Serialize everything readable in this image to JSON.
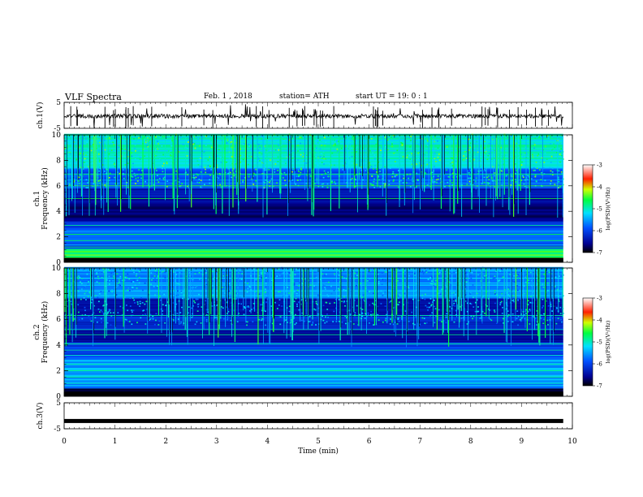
{
  "header": {
    "title": "VLF  Spectra",
    "date": "Feb. 1  , 2018",
    "station": "station= ATH",
    "start": "start  UT  =   19: 0   : 1"
  },
  "chart_data": [
    {
      "type": "line",
      "panel": "ch1-waveform",
      "ylabel": "ch.1(V)",
      "ylim": [
        -5,
        5
      ],
      "yticks": [
        "5",
        "-5"
      ],
      "xlim": [
        0,
        10
      ],
      "data_end_min": 9.82,
      "baseline": -0.3
    },
    {
      "type": "heatmap",
      "panel": "ch1-spectrogram",
      "ylabel": "Frequency (kHz)",
      "channel_label": "ch.1",
      "ylim": [
        0,
        10
      ],
      "yticks": [
        "0",
        "2",
        "4",
        "6",
        "8",
        "10"
      ],
      "xlim": [
        0,
        10
      ],
      "colorbar": {
        "label": "log(PSD)(V²/Hz)",
        "ticks": [
          "-3",
          "-4",
          "-5",
          "-6",
          "-7"
        ],
        "range": [
          -7,
          -3
        ]
      }
    },
    {
      "type": "heatmap",
      "panel": "ch2-spectrogram",
      "ylabel": "Frequency (kHz)",
      "channel_label": "ch.2",
      "ylim": [
        0,
        10
      ],
      "yticks": [
        "0",
        "2",
        "4",
        "6",
        "8",
        "10"
      ],
      "xlim": [
        0,
        10
      ],
      "colorbar": {
        "label": "log(PSD)(V²/Hz)",
        "ticks": [
          "-3",
          "-4",
          "-5",
          "-6",
          "-7"
        ],
        "range": [
          -7,
          -3
        ]
      }
    },
    {
      "type": "line",
      "panel": "ch3-waveform",
      "ylabel": "ch.3(V)",
      "ylim": [
        -5,
        5
      ],
      "yticks": [
        "5",
        "-5"
      ],
      "xlim": [
        0,
        10
      ],
      "data_end_min": 9.82,
      "baseline": -2
    }
  ],
  "xaxis": {
    "label": "Time  (min)",
    "ticks": [
      "0",
      "1",
      "2",
      "3",
      "4",
      "5",
      "6",
      "7",
      "8",
      "9",
      "10"
    ]
  }
}
